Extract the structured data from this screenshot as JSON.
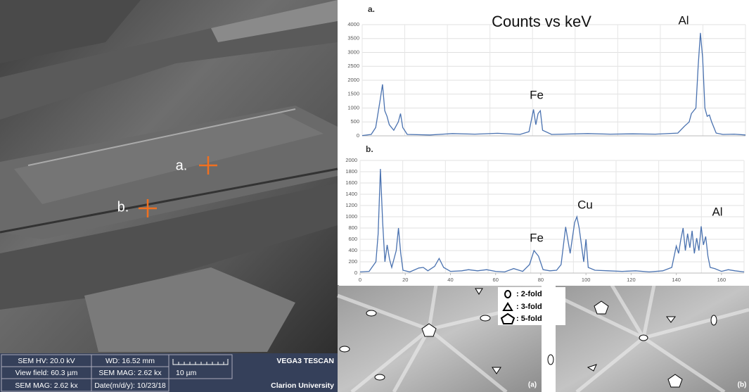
{
  "chart_data": [
    {
      "type": "line",
      "label": "a.",
      "title": "Counts vs keV",
      "color": "#4a72b0",
      "x": [
        0,
        4,
        6,
        8,
        9,
        10,
        11,
        12,
        14,
        16,
        17,
        18,
        20,
        30,
        40,
        50,
        60,
        70,
        74,
        76,
        77,
        78,
        79,
        80,
        84,
        100,
        110,
        120,
        130,
        140,
        143,
        145,
        146,
        148,
        149,
        150,
        151,
        152,
        153,
        154,
        155,
        157,
        160,
        165,
        170
      ],
      "values": [
        10,
        50,
        300,
        1300,
        1850,
        900,
        700,
        400,
        200,
        500,
        800,
        300,
        50,
        30,
        80,
        60,
        90,
        50,
        150,
        950,
        400,
        800,
        900,
        200,
        50,
        80,
        60,
        70,
        60,
        100,
        350,
        500,
        800,
        1000,
        2500,
        3700,
        2800,
        1000,
        700,
        750,
        500,
        100,
        50,
        60,
        30
      ],
      "xlim": [
        0,
        170
      ],
      "ylim": [
        0,
        4000
      ],
      "yticks": [
        0,
        500,
        1000,
        1500,
        2000,
        2500,
        3000,
        3500,
        4000
      ],
      "grid": true,
      "annotations": [
        "Fe",
        "Al"
      ]
    },
    {
      "type": "line",
      "label": "b.",
      "color": "#4a72b0",
      "x": [
        0,
        4,
        7,
        8,
        9,
        10,
        11,
        12,
        13,
        14,
        16,
        17,
        18,
        19,
        22,
        26,
        28,
        30,
        33,
        35,
        37,
        40,
        45,
        48,
        52,
        56,
        60,
        64,
        68,
        72,
        75,
        77,
        79,
        81,
        84,
        87,
        89,
        91,
        93,
        95,
        96,
        97,
        99,
        100,
        101,
        104,
        110,
        116,
        122,
        128,
        134,
        138,
        140,
        141,
        142,
        143,
        144,
        145,
        146,
        147,
        148,
        149,
        150,
        151,
        152,
        153,
        154,
        155,
        157,
        160,
        163,
        166,
        170
      ],
      "values": [
        20,
        30,
        200,
        700,
        1850,
        900,
        200,
        500,
        250,
        100,
        400,
        800,
        350,
        50,
        20,
        90,
        100,
        40,
        120,
        260,
        100,
        30,
        40,
        60,
        40,
        60,
        30,
        20,
        80,
        30,
        150,
        400,
        300,
        60,
        40,
        50,
        150,
        820,
        350,
        900,
        1000,
        800,
        200,
        600,
        100,
        50,
        40,
        30,
        40,
        20,
        40,
        100,
        480,
        350,
        600,
        800,
        400,
        700,
        450,
        750,
        350,
        620,
        400,
        830,
        500,
        650,
        300,
        100,
        80,
        30,
        60,
        40,
        20
      ],
      "xlim": [
        0,
        170
      ],
      "xticks": [
        0,
        20,
        40,
        60,
        80,
        100,
        120,
        140,
        160
      ],
      "ylim": [
        0,
        2000
      ],
      "yticks": [
        0,
        200,
        400,
        600,
        800,
        1000,
        1200,
        1400,
        1600,
        1800,
        2000
      ],
      "grid": true,
      "annotations": [
        "Cu",
        "Fe",
        "Al"
      ]
    }
  ],
  "sem": {
    "markers": [
      "a.",
      "b."
    ],
    "info": [
      "SEM HV: 20.0 kV",
      "WD: 16.52 mm",
      "VEGA3 TESCAN",
      "View field: 60.3 µm",
      "SEM MAG: 2.62 kx",
      "10 µm",
      "SEM MAG: 2.62 kx",
      "Date(m/d/y): 10/23/18",
      "Clarion University"
    ]
  },
  "pattern": {
    "legend": [
      ": 2-fold",
      ": 3-fold",
      ": 5-fold"
    ],
    "panels": [
      "(a)",
      "(b)"
    ]
  }
}
